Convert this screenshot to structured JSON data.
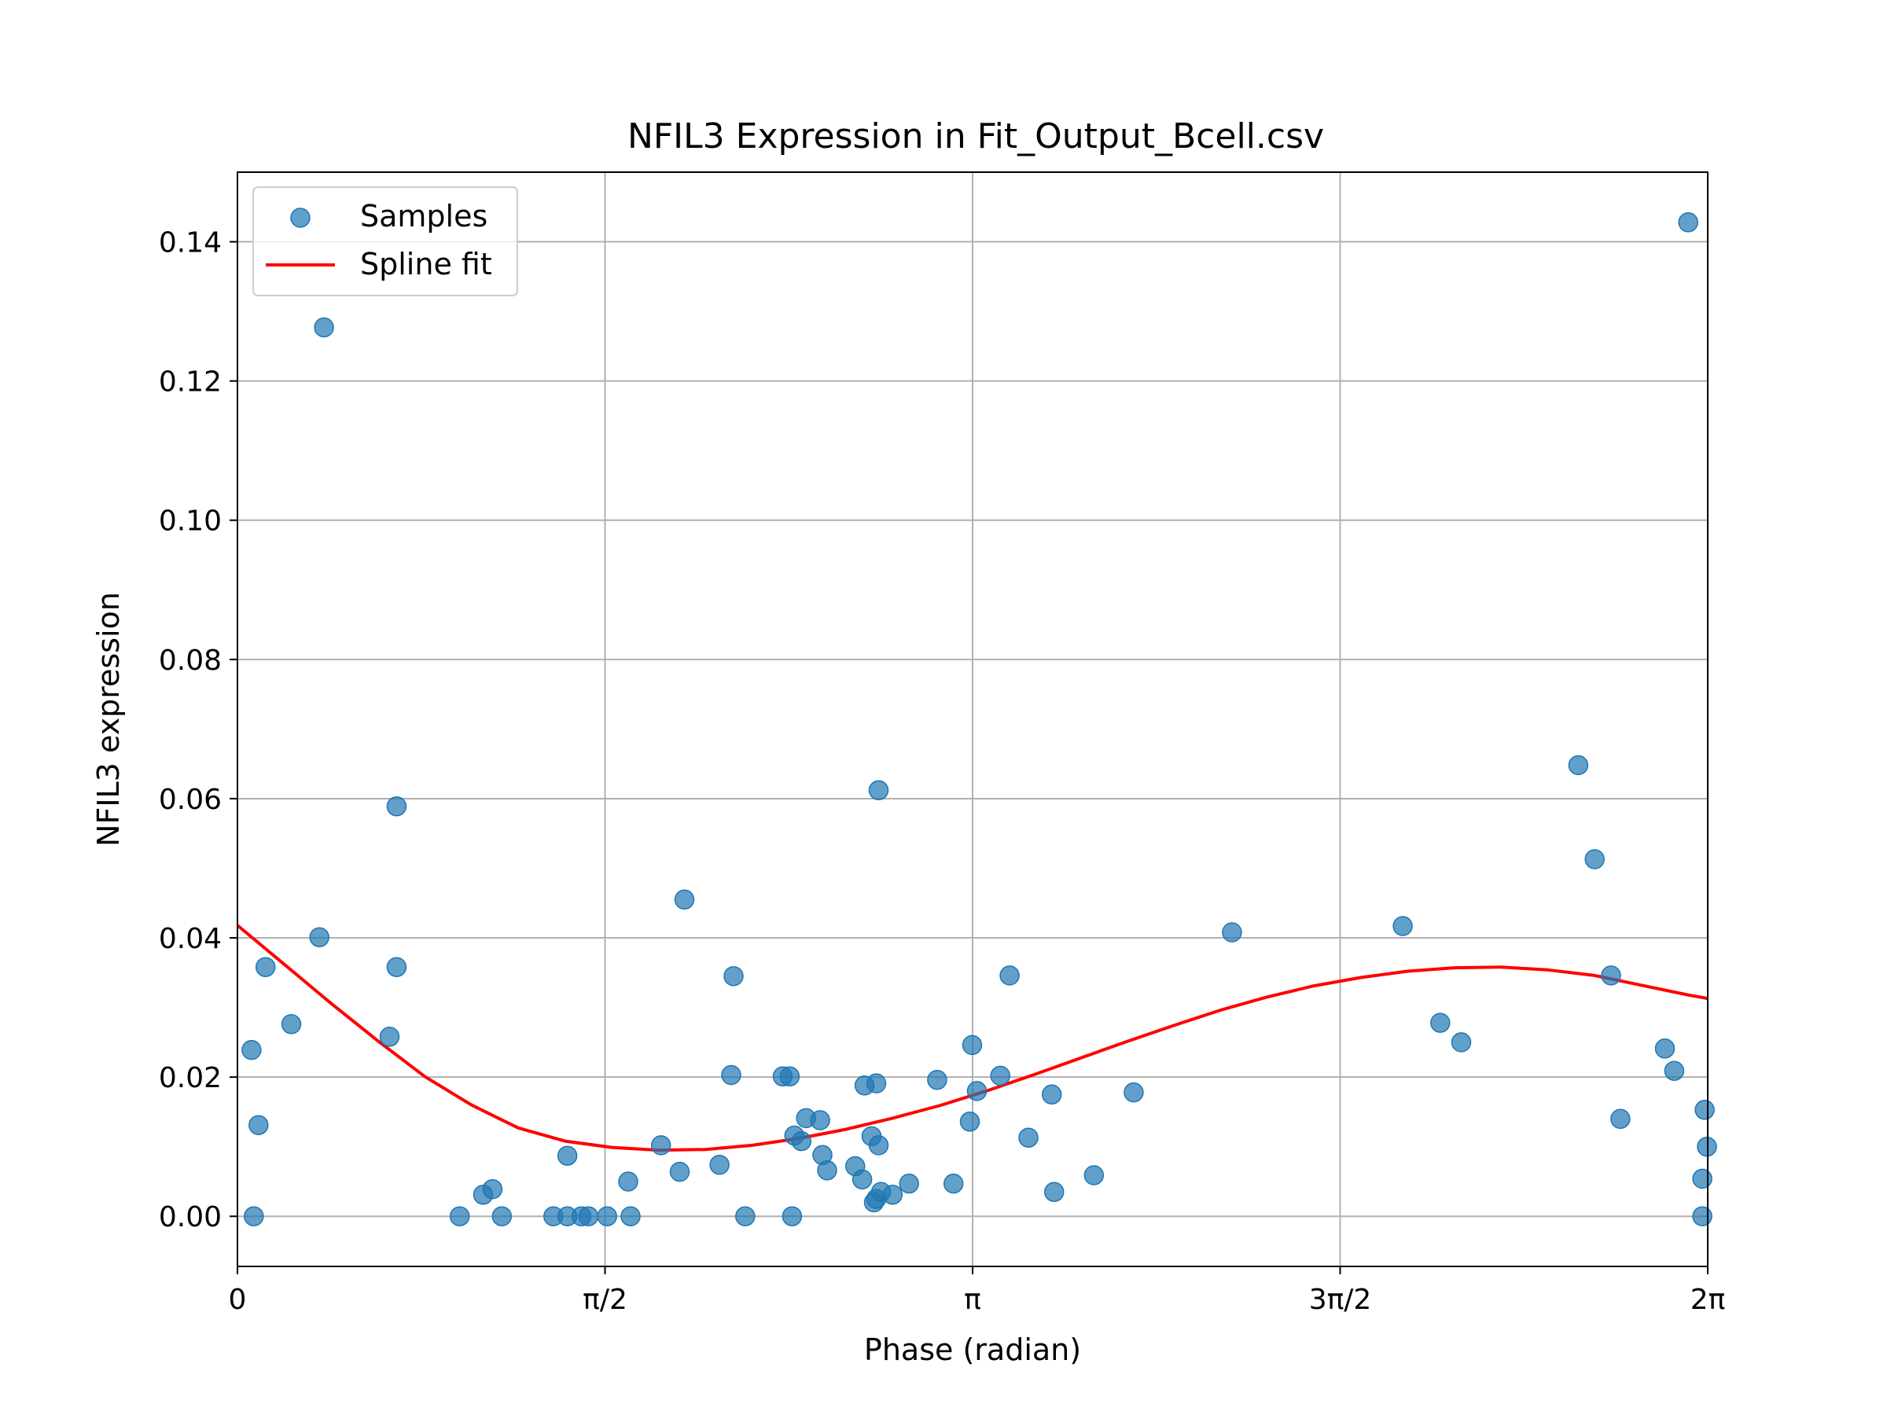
{
  "chart_data": {
    "type": "scatter",
    "title": "NFIL3 Expression in Fit_Output_Bcell.csv",
    "xlabel": "Phase (radian)",
    "ylabel": "NFIL3 expression",
    "xlim": [
      0,
      6.2832
    ],
    "ylim": [
      -0.0072,
      0.15
    ],
    "grid": true,
    "legend_position": "upper-left",
    "x_ticks": [
      {
        "value": 0,
        "label": "0"
      },
      {
        "value": 1.5708,
        "label": "π/2"
      },
      {
        "value": 3.1416,
        "label": "π"
      },
      {
        "value": 4.7124,
        "label": "3π/2"
      },
      {
        "value": 6.2832,
        "label": "2π"
      }
    ],
    "y_ticks": [
      {
        "value": 0.0,
        "label": "0.00"
      },
      {
        "value": 0.02,
        "label": "0.02"
      },
      {
        "value": 0.04,
        "label": "0.04"
      },
      {
        "value": 0.06,
        "label": "0.06"
      },
      {
        "value": 0.08,
        "label": "0.08"
      },
      {
        "value": 0.1,
        "label": "0.10"
      },
      {
        "value": 0.12,
        "label": "0.12"
      },
      {
        "value": 0.14,
        "label": "0.14"
      }
    ],
    "series": [
      {
        "name": "Samples",
        "type": "scatter",
        "color": "#1f77b4",
        "points": [
          [
            0.06,
            0.0239
          ],
          [
            0.07,
            0.0
          ],
          [
            0.09,
            0.0131
          ],
          [
            0.12,
            0.0358
          ],
          [
            0.23,
            0.0276
          ],
          [
            0.35,
            0.0401
          ],
          [
            0.37,
            0.1277
          ],
          [
            0.65,
            0.0258
          ],
          [
            0.68,
            0.0358
          ],
          [
            0.68,
            0.0589
          ],
          [
            0.95,
            0.0
          ],
          [
            1.05,
            0.0031
          ],
          [
            1.09,
            0.0039
          ],
          [
            1.13,
            0.0
          ],
          [
            1.35,
            0.0
          ],
          [
            1.41,
            0.0087
          ],
          [
            1.41,
            0.0
          ],
          [
            1.47,
            0.0
          ],
          [
            1.5,
            0.0
          ],
          [
            1.58,
            0.0
          ],
          [
            1.67,
            0.005
          ],
          [
            1.68,
            0.0
          ],
          [
            1.81,
            0.0102
          ],
          [
            1.89,
            0.0064
          ],
          [
            1.91,
            0.0455
          ],
          [
            2.06,
            0.0074
          ],
          [
            2.11,
            0.0203
          ],
          [
            2.12,
            0.0345
          ],
          [
            2.17,
            0.0
          ],
          [
            2.33,
            0.0201
          ],
          [
            2.36,
            0.0201
          ],
          [
            2.37,
            0.0
          ],
          [
            2.38,
            0.0116
          ],
          [
            2.41,
            0.0108
          ],
          [
            2.43,
            0.0141
          ],
          [
            2.49,
            0.0138
          ],
          [
            2.5,
            0.0088
          ],
          [
            2.52,
            0.0066
          ],
          [
            2.64,
            0.0072
          ],
          [
            2.67,
            0.0053
          ],
          [
            2.68,
            0.0188
          ],
          [
            2.71,
            0.0115
          ],
          [
            2.72,
            0.002
          ],
          [
            2.73,
            0.0191
          ],
          [
            2.73,
            0.0025
          ],
          [
            2.74,
            0.0102
          ],
          [
            2.75,
            0.0035
          ],
          [
            2.74,
            0.0612
          ],
          [
            2.8,
            0.0031
          ],
          [
            2.87,
            0.0047
          ],
          [
            2.99,
            0.0196
          ],
          [
            3.06,
            0.0047
          ],
          [
            3.13,
            0.0136
          ],
          [
            3.14,
            0.0246
          ],
          [
            3.16,
            0.018
          ],
          [
            3.26,
            0.0202
          ],
          [
            3.3,
            0.0346
          ],
          [
            3.38,
            0.0113
          ],
          [
            3.48,
            0.0175
          ],
          [
            3.49,
            0.0035
          ],
          [
            3.66,
            0.0059
          ],
          [
            3.83,
            0.0178
          ],
          [
            4.25,
            0.0408
          ],
          [
            4.98,
            0.0417
          ],
          [
            5.14,
            0.0278
          ],
          [
            5.23,
            0.025
          ],
          [
            5.73,
            0.0648
          ],
          [
            5.8,
            0.0513
          ],
          [
            5.87,
            0.0346
          ],
          [
            5.91,
            0.014
          ],
          [
            6.1,
            0.0241
          ],
          [
            6.14,
            0.0209
          ],
          [
            6.2,
            0.1428
          ],
          [
            6.26,
            0.0
          ],
          [
            6.26,
            0.0054
          ],
          [
            6.27,
            0.0153
          ],
          [
            6.28,
            0.01
          ]
        ]
      },
      {
        "name": "Spline fit",
        "type": "line",
        "color": "#ff0000",
        "points": [
          [
            0.0,
            0.0418
          ],
          [
            0.2,
            0.0362
          ],
          [
            0.4,
            0.0306
          ],
          [
            0.6,
            0.0252
          ],
          [
            0.8,
            0.0201
          ],
          [
            1.0,
            0.016
          ],
          [
            1.2,
            0.0127
          ],
          [
            1.4,
            0.0108
          ],
          [
            1.6,
            0.0099
          ],
          [
            1.8,
            0.0095
          ],
          [
            2.0,
            0.0096
          ],
          [
            2.2,
            0.0102
          ],
          [
            2.4,
            0.0112
          ],
          [
            2.6,
            0.0125
          ],
          [
            2.8,
            0.0141
          ],
          [
            3.0,
            0.0159
          ],
          [
            3.2,
            0.018
          ],
          [
            3.4,
            0.0203
          ],
          [
            3.6,
            0.0227
          ],
          [
            3.8,
            0.0251
          ],
          [
            4.0,
            0.0274
          ],
          [
            4.2,
            0.0296
          ],
          [
            4.4,
            0.0315
          ],
          [
            4.6,
            0.0331
          ],
          [
            4.8,
            0.0343
          ],
          [
            5.0,
            0.0352
          ],
          [
            5.2,
            0.0357
          ],
          [
            5.4,
            0.0358
          ],
          [
            5.6,
            0.0354
          ],
          [
            5.8,
            0.0346
          ],
          [
            6.0,
            0.0332
          ],
          [
            6.1,
            0.0325
          ],
          [
            6.2,
            0.0318
          ],
          [
            6.2832,
            0.0313
          ]
        ]
      }
    ]
  }
}
